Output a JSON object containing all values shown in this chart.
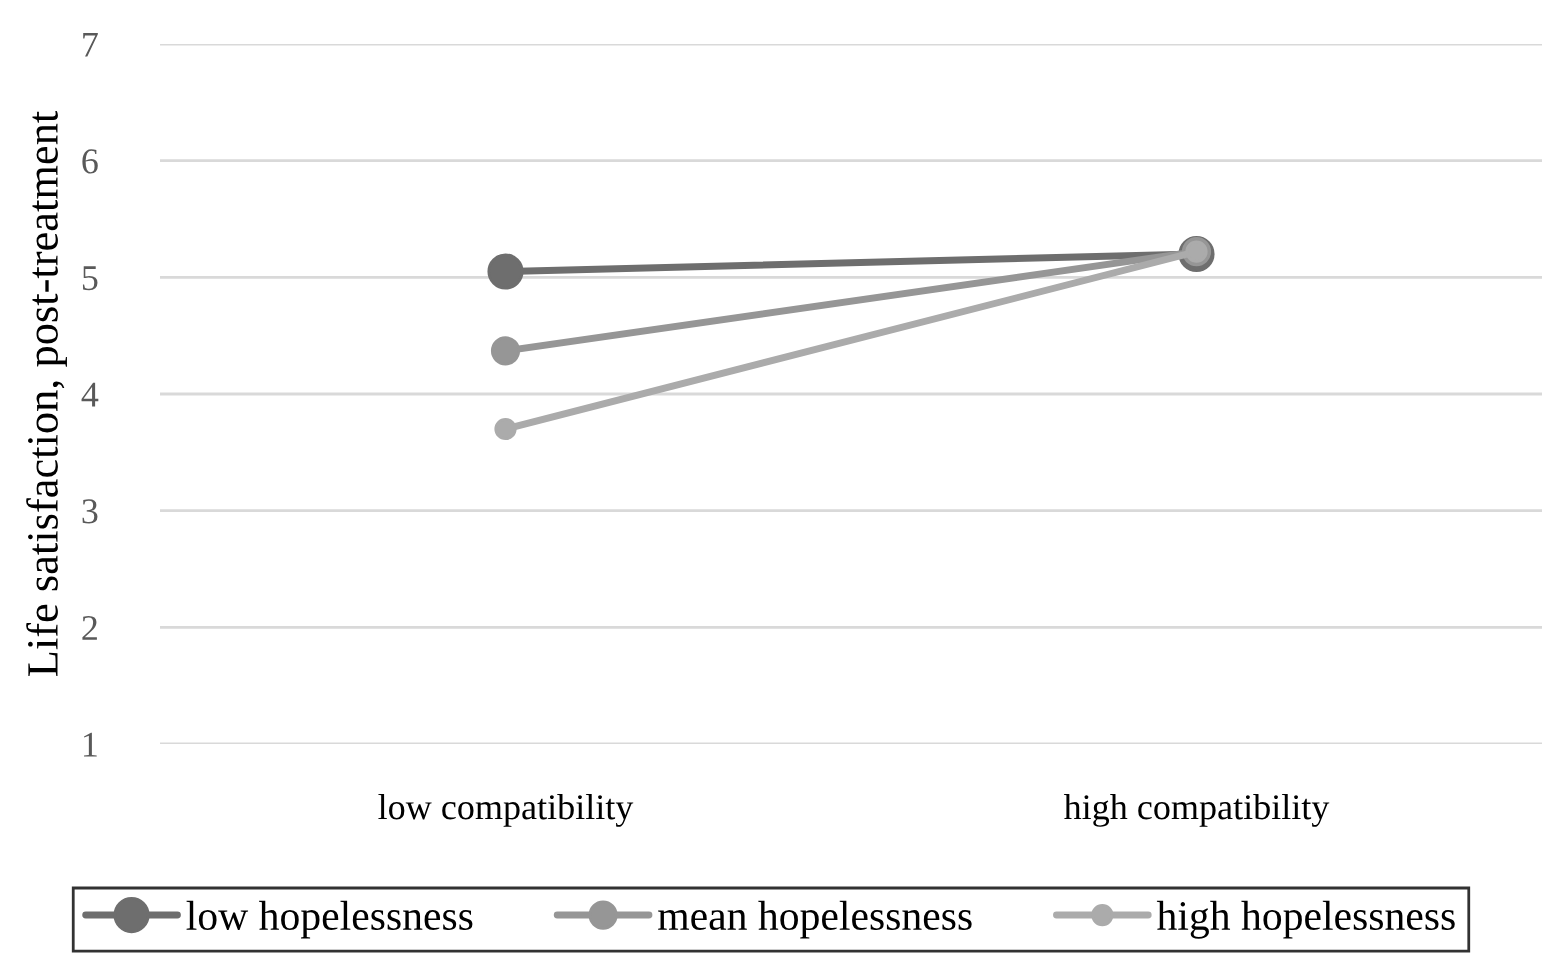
{
  "chart_data": {
    "type": "line",
    "ylabel": "Life satisfaction, post-treatment",
    "categories": [
      "low compatibility",
      "high compatibility"
    ],
    "series": [
      {
        "name": "low hopelessness",
        "color": "#6e6e6e",
        "values": [
          5.05,
          5.2
        ]
      },
      {
        "name": "mean hopelessness",
        "color": "#969696",
        "values": [
          4.37,
          5.22
        ]
      },
      {
        "name": "high hopelessness",
        "color": "#ababab",
        "values": [
          3.7,
          5.22
        ]
      }
    ],
    "ylim": [
      1,
      7
    ],
    "yticks": [
      1,
      2,
      3,
      4,
      5,
      6,
      7
    ],
    "grid": "y",
    "legend": "bottom",
    "marker": "circle",
    "line_style": "solid"
  }
}
